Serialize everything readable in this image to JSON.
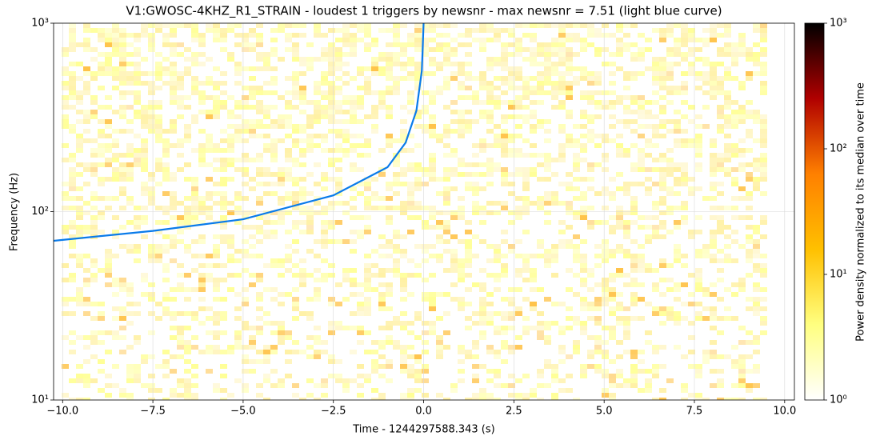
{
  "chart_data": {
    "type": "line",
    "title": "V1:GWOSC-4KHZ_R1_STRAIN - loudest 1 triggers by newsnr - max newsnr = 7.51 (light blue curve)",
    "xlabel": "Time - 1244297588.343 (s)",
    "ylabel": "Frequency (Hz)",
    "x": [
      -10.25,
      -7.5,
      -5,
      -2.5,
      -1,
      -0.5,
      -0.2,
      -0.05,
      0
    ],
    "values": [
      70,
      79,
      91,
      122,
      172,
      232,
      343,
      560,
      1000
    ],
    "color": "#0a7bea",
    "xlim": [
      -10.25,
      10.27
    ],
    "ylim": [
      10,
      1000
    ],
    "ylog": true,
    "grid": true,
    "xticks": [
      {
        "value": -10,
        "label": "−10.0"
      },
      {
        "value": -7.5,
        "label": "−7.5"
      },
      {
        "value": -5,
        "label": "−5.0"
      },
      {
        "value": -2.5,
        "label": "−2.5"
      },
      {
        "value": 0,
        "label": "0.0"
      },
      {
        "value": 2.5,
        "label": "2.5"
      },
      {
        "value": 5,
        "label": "5.0"
      },
      {
        "value": 7.5,
        "label": "7.5"
      },
      {
        "value": 10,
        "label": "10.0"
      }
    ],
    "yticks": [
      {
        "value": 10,
        "label": "10¹"
      },
      {
        "value": 100,
        "label": "10²"
      },
      {
        "value": 1000,
        "label": "10³"
      }
    ],
    "colorbar": {
      "label": "Power density normalized to its median over time",
      "lim": [
        1,
        1000
      ],
      "log": true,
      "colors": [
        "#ffffff",
        "#ffff80",
        "#ffc000",
        "#ff8000",
        "#b00000",
        "#000000"
      ],
      "ticks": [
        {
          "value": 1,
          "label": "10⁰"
        },
        {
          "value": 10,
          "label": "10¹"
        },
        {
          "value": 100,
          "label": "10²"
        },
        {
          "value": 1000,
          "label": "10³"
        }
      ]
    }
  }
}
